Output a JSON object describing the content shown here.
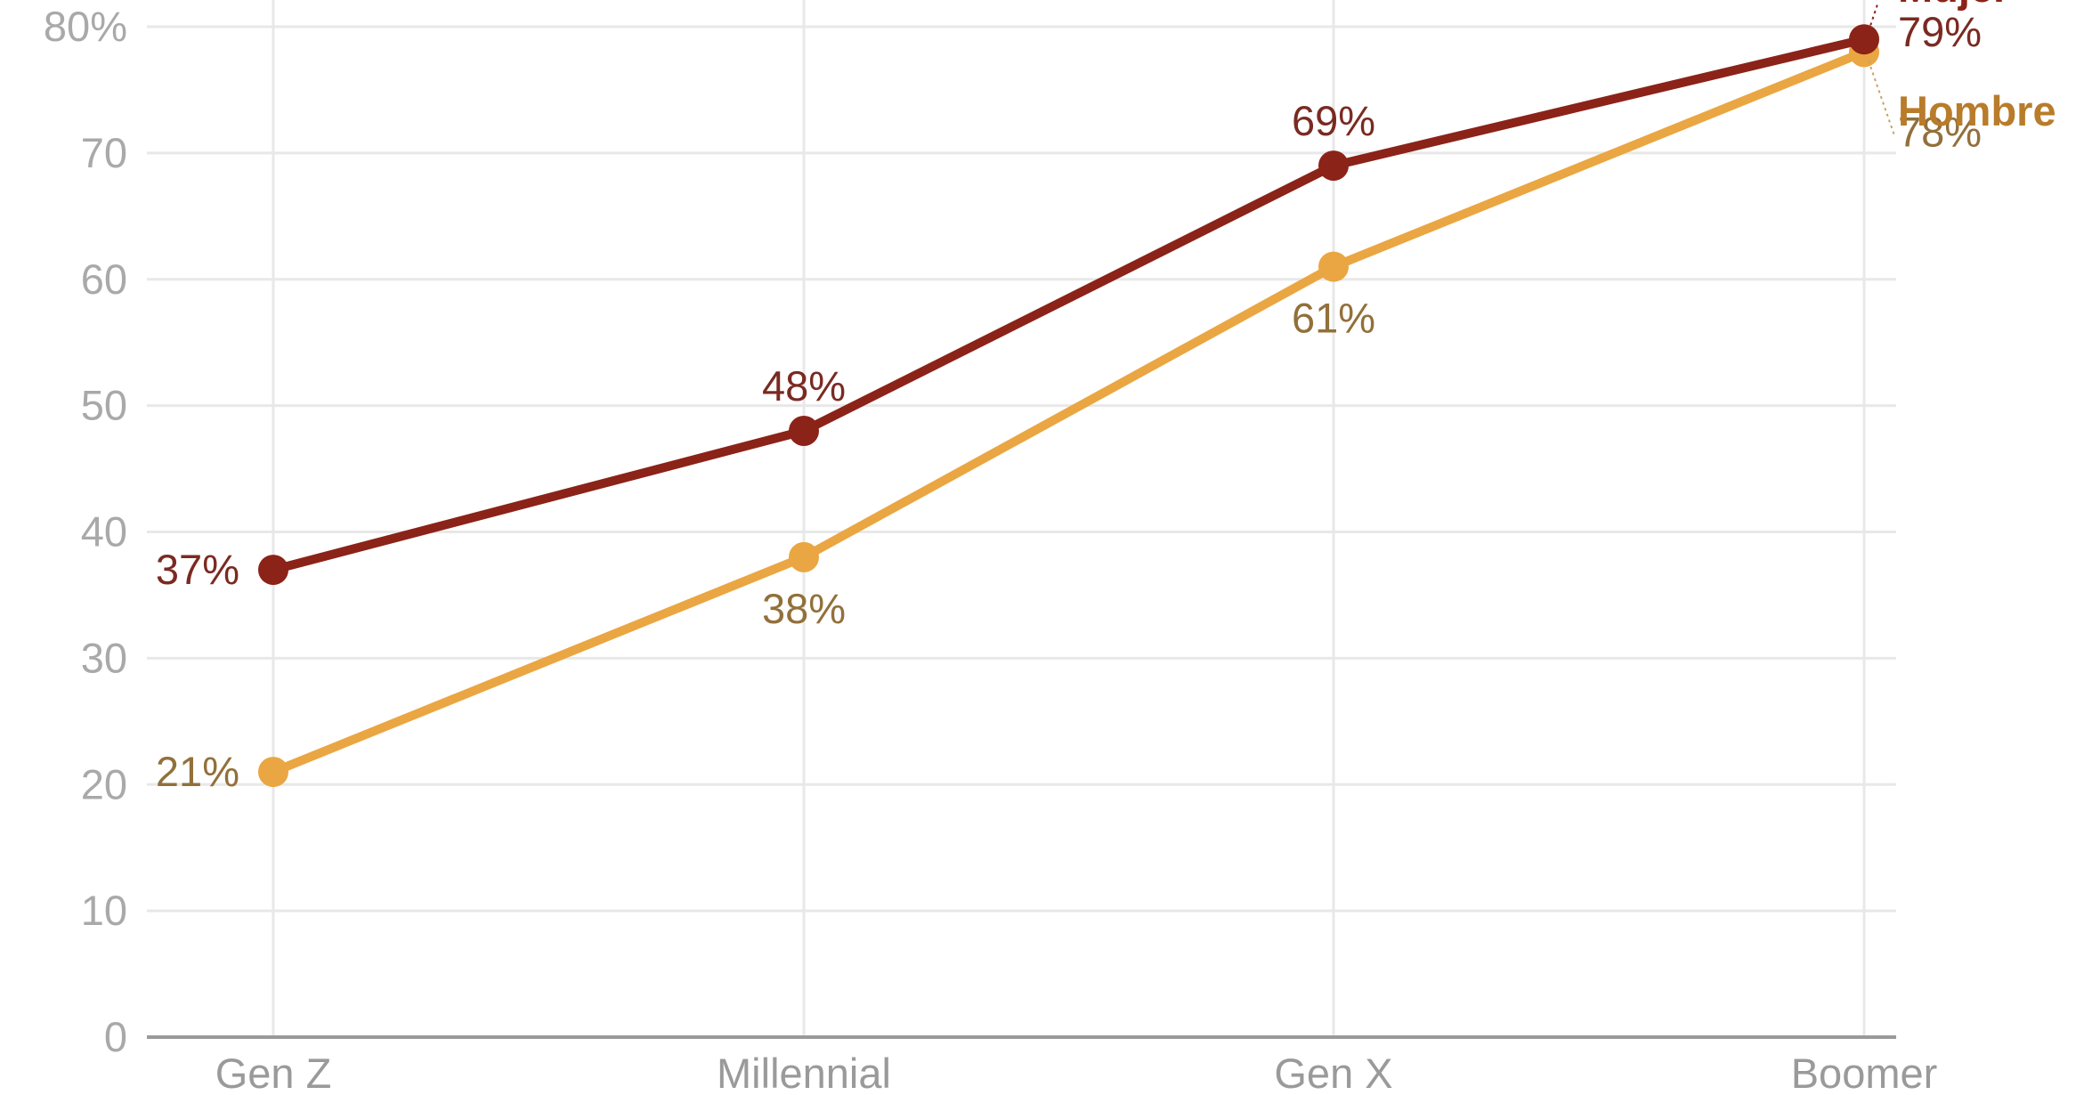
{
  "chart_data": {
    "type": "line",
    "categories": [
      "Gen Z",
      "Millennial",
      "Gen X",
      "Boomer"
    ],
    "ylim": [
      0,
      80
    ],
    "yticks": [
      0,
      10,
      20,
      30,
      40,
      50,
      60,
      70,
      80
    ],
    "ytick_labels": [
      "0",
      "10",
      "20",
      "30",
      "40",
      "50",
      "60",
      "70",
      "80%"
    ],
    "grid": true,
    "series": [
      {
        "name": "Mujer",
        "color": "#8b2318",
        "label_color": "#7a2a22",
        "values": [
          37,
          48,
          69,
          79
        ],
        "labels": [
          "37%",
          "48%",
          "69%",
          "79%"
        ],
        "label_pos": [
          "left",
          "above",
          "above",
          "right"
        ]
      },
      {
        "name": "Hombre",
        "color": "#eaa642",
        "label_color": "#92703a",
        "name_color": "#b87c2a",
        "values": [
          21,
          38,
          61,
          78
        ],
        "labels": [
          "21%",
          "38%",
          "61%",
          "78%"
        ],
        "label_pos": [
          "left",
          "below",
          "below",
          "right"
        ]
      }
    ]
  }
}
